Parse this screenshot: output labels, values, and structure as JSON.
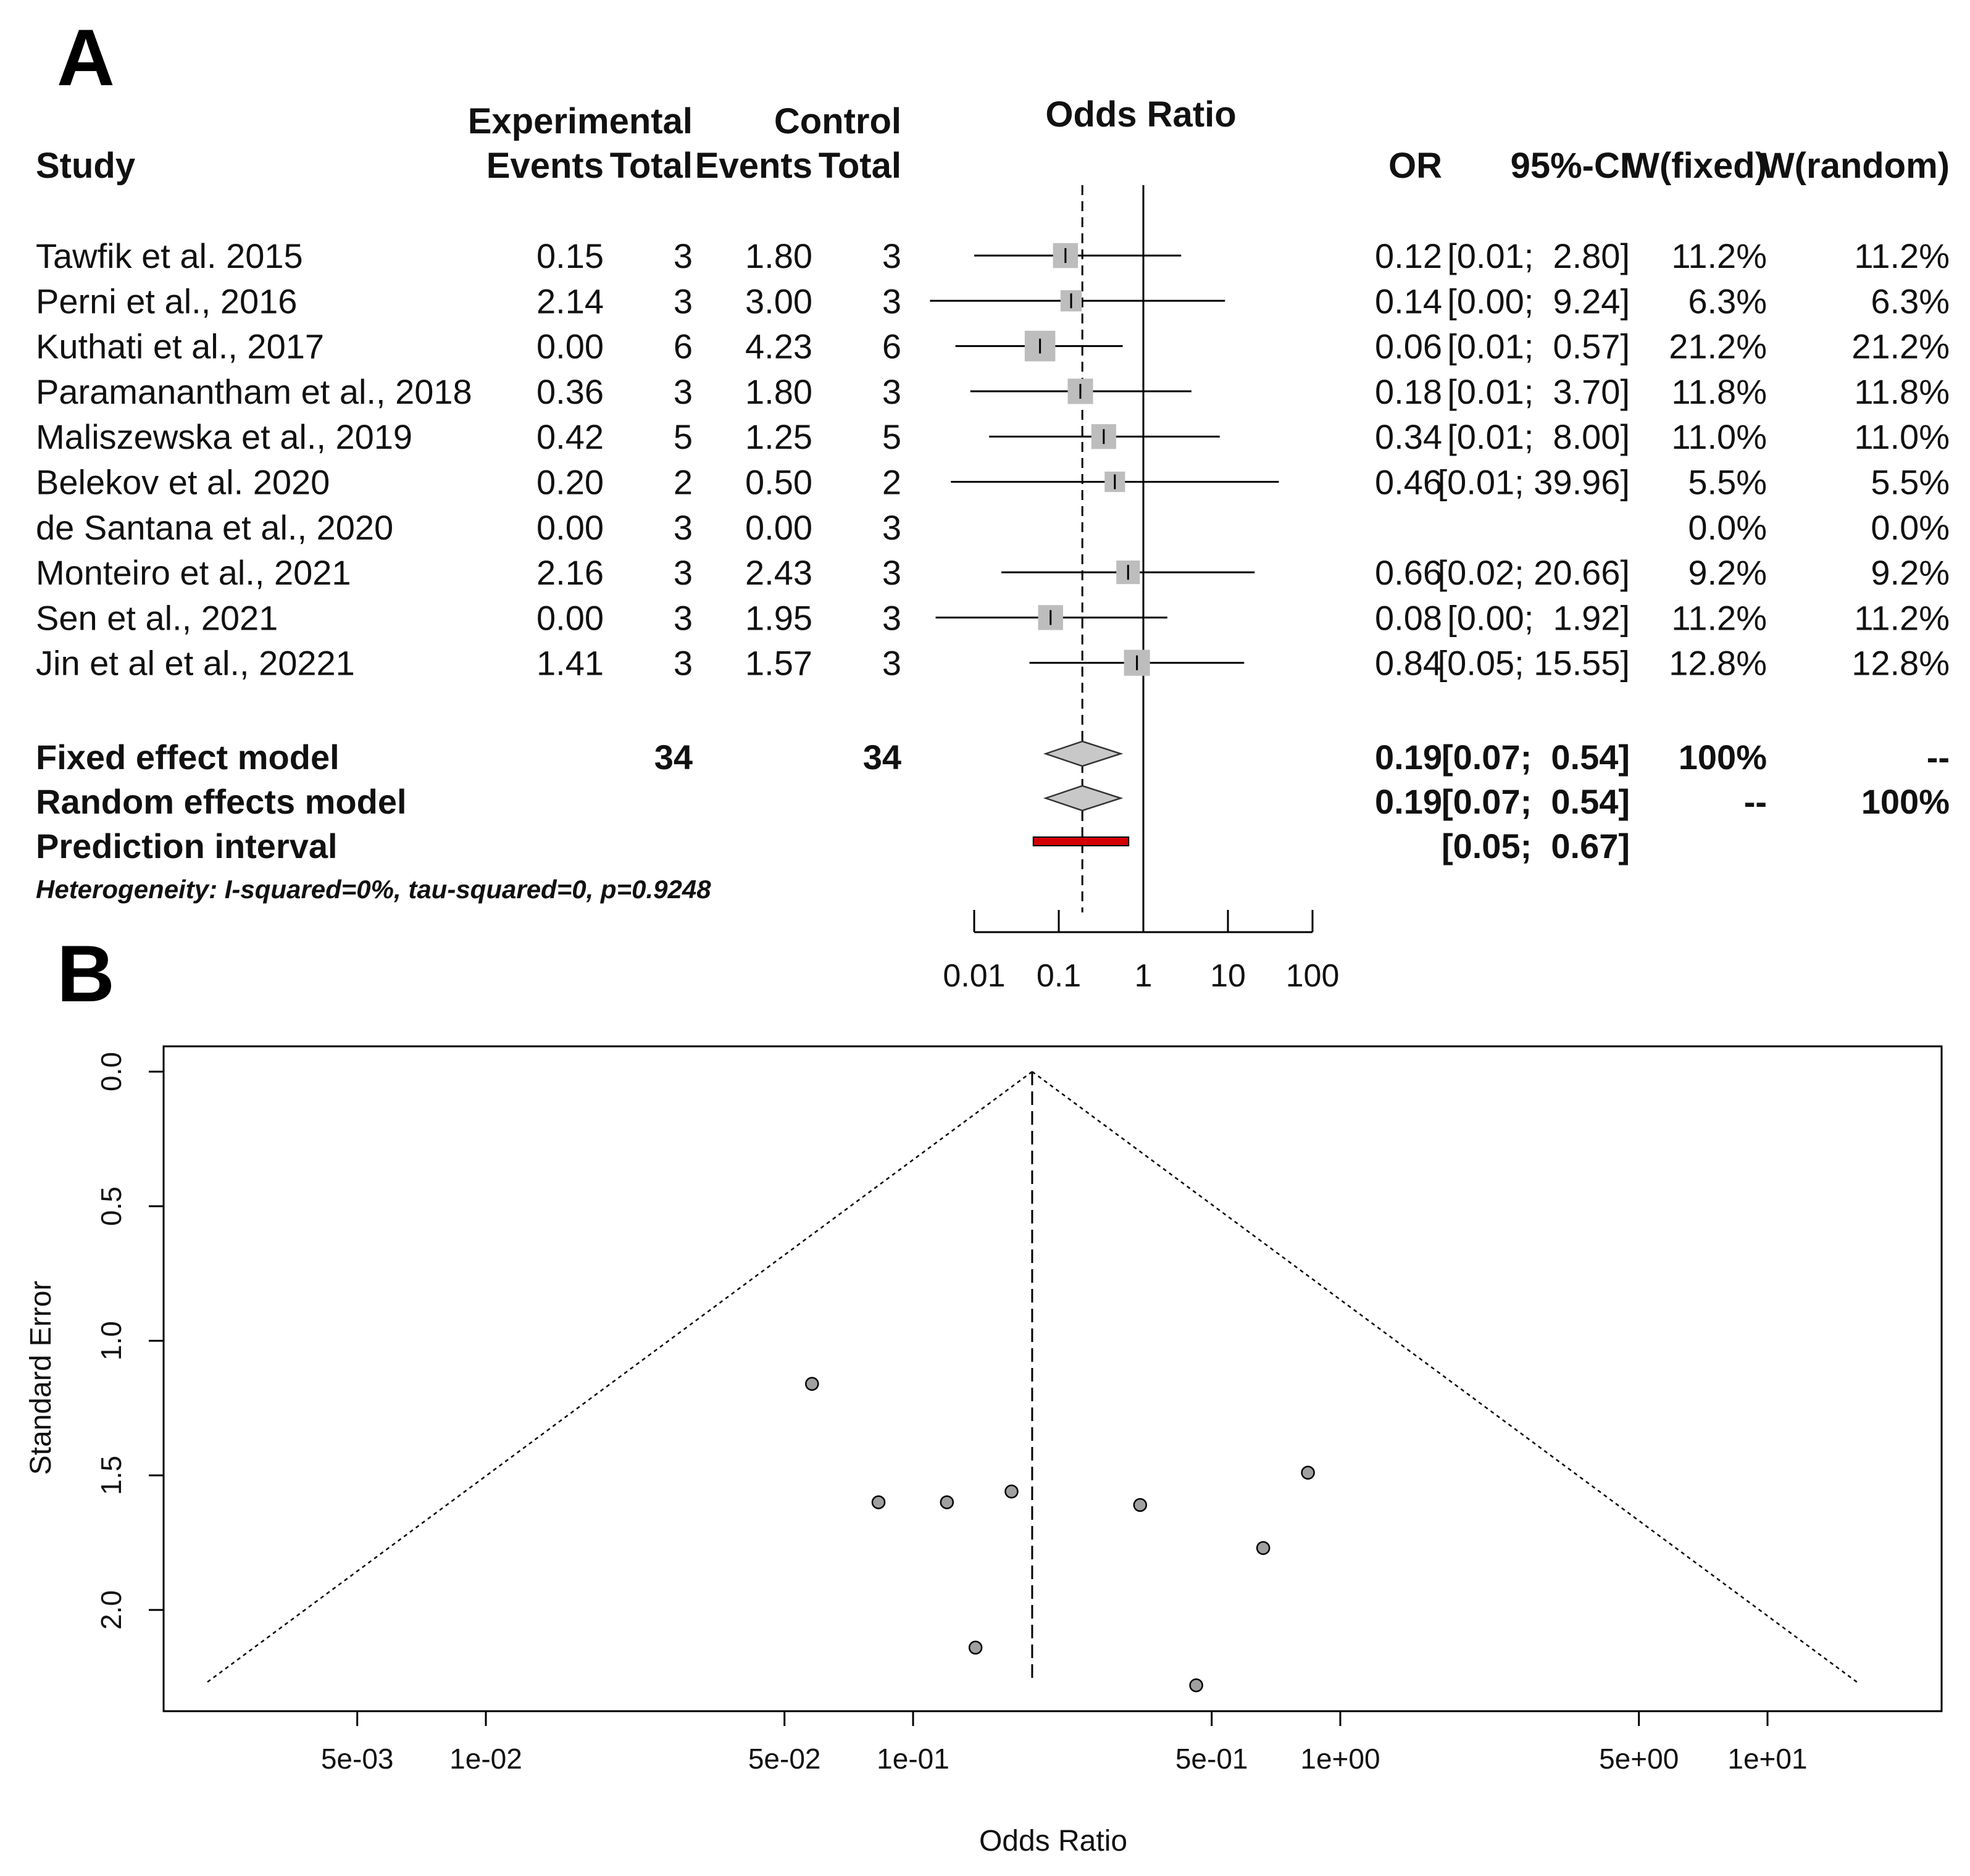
{
  "panels": {
    "a": "A",
    "b": "B"
  },
  "forest": {
    "headers": {
      "study": "Study",
      "experimental": "Experimental",
      "control": "Control",
      "events": "Events",
      "total": "Total",
      "odds_ratio": "Odds Ratio",
      "or": "OR",
      "ci": "95%-CI",
      "w_fixed": "W(fixed)",
      "w_random": "W(random)"
    },
    "rows": [
      {
        "study": "Tawfik et al. 2015",
        "e_events": "0.15",
        "e_total": "3",
        "c_events": "1.80",
        "c_total": "3",
        "or_text": "0.12",
        "ci_text": "[0.01;  2.80]",
        "wf": "11.2%",
        "wr": "11.2%"
      },
      {
        "study": "Perni et al., 2016",
        "e_events": "2.14",
        "e_total": "3",
        "c_events": "3.00",
        "c_total": "3",
        "or_text": "0.14",
        "ci_text": "[0.00;  9.24]",
        "wf": "6.3%",
        "wr": "6.3%"
      },
      {
        "study": "Kuthati et al., 2017",
        "e_events": "0.00",
        "e_total": "6",
        "c_events": "4.23",
        "c_total": "6",
        "or_text": "0.06",
        "ci_text": "[0.01;  0.57]",
        "wf": "21.2%",
        "wr": "21.2%"
      },
      {
        "study": "Paramanantham et al., 2018",
        "e_events": "0.36",
        "e_total": "3",
        "c_events": "1.80",
        "c_total": "3",
        "or_text": "0.18",
        "ci_text": "[0.01;  3.70]",
        "wf": "11.8%",
        "wr": "11.8%"
      },
      {
        "study": "Maliszewska et al., 2019",
        "e_events": "0.42",
        "e_total": "5",
        "c_events": "1.25",
        "c_total": "5",
        "or_text": "0.34",
        "ci_text": "[0.01;  8.00]",
        "wf": "11.0%",
        "wr": "11.0%"
      },
      {
        "study": "Belekov et al. 2020",
        "e_events": "0.20",
        "e_total": "2",
        "c_events": "0.50",
        "c_total": "2",
        "or_text": "0.46",
        "ci_text": "[0.01; 39.96]",
        "wf": "5.5%",
        "wr": "5.5%"
      },
      {
        "study": "de Santana et al., 2020",
        "e_events": "0.00",
        "e_total": "3",
        "c_events": "0.00",
        "c_total": "3",
        "or_text": "",
        "ci_text": "",
        "wf": "0.0%",
        "wr": "0.0%"
      },
      {
        "study": "Monteiro et al., 2021",
        "e_events": "2.16",
        "e_total": "3",
        "c_events": "2.43",
        "c_total": "3",
        "or_text": "0.66",
        "ci_text": "[0.02; 20.66]",
        "wf": "9.2%",
        "wr": "9.2%"
      },
      {
        "study": "Sen et al., 2021",
        "e_events": "0.00",
        "e_total": "3",
        "c_events": "1.95",
        "c_total": "3",
        "or_text": "0.08",
        "ci_text": "[0.00;  1.92]",
        "wf": "11.2%",
        "wr": "11.2%"
      },
      {
        "study": "Jin et al et al., 20221",
        "e_events": "1.41",
        "e_total": "3",
        "c_events": "1.57",
        "c_total": "3",
        "or_text": "0.84",
        "ci_text": "[0.05; 15.55]",
        "wf": "12.8%",
        "wr": "12.8%"
      }
    ],
    "fixed": {
      "label": "Fixed effect model",
      "e_total": "34",
      "c_total": "34",
      "or_text": "0.19",
      "ci_text": "[0.07;  0.54]",
      "wf": "100%",
      "wr": "--"
    },
    "random": {
      "label": "Random effects model",
      "or_text": "0.19",
      "ci_text": "[0.07;  0.54]",
      "wf": "--",
      "wr": "100%"
    },
    "prediction": {
      "label": "Prediction interval",
      "ci_text": "[0.05;  0.67]"
    },
    "heterogeneity": "Heterogeneity: I-squared=0%, tau-squared=0, p=0.9248"
  },
  "chart_data": [
    {
      "type": "forest",
      "title": "Odds Ratio",
      "scale": "log",
      "xlim": [
        0.01,
        100
      ],
      "ticks": [
        0.01,
        0.1,
        1,
        10,
        100
      ],
      "tick_labels": [
        "0.01",
        "0.1",
        "1",
        "10",
        "100"
      ],
      "reference_line": 1,
      "summary_line": 0.19,
      "studies": [
        {
          "name": "Tawfik et al. 2015",
          "or": 0.12,
          "lo": 0.01,
          "hi": 2.8,
          "weight": 11.2
        },
        {
          "name": "Perni et al., 2016",
          "or": 0.14,
          "lo": 0.003,
          "hi": 9.24,
          "weight": 6.3
        },
        {
          "name": "Kuthati et al., 2017",
          "or": 0.06,
          "lo": 0.006,
          "hi": 0.57,
          "weight": 21.2
        },
        {
          "name": "Paramanantham et al., 2018",
          "or": 0.18,
          "lo": 0.009,
          "hi": 3.7,
          "weight": 11.8
        },
        {
          "name": "Maliszewska et al., 2019",
          "or": 0.34,
          "lo": 0.015,
          "hi": 8.0,
          "weight": 11.0
        },
        {
          "name": "Belekov et al. 2020",
          "or": 0.46,
          "lo": 0.0053,
          "hi": 39.96,
          "weight": 5.5
        },
        {
          "name": "de Santana et al., 2020",
          "or": null,
          "lo": null,
          "hi": null,
          "weight": 0.0
        },
        {
          "name": "Monteiro et al., 2021",
          "or": 0.66,
          "lo": 0.021,
          "hi": 20.66,
          "weight": 9.2
        },
        {
          "name": "Sen et al., 2021",
          "or": 0.08,
          "lo": 0.0035,
          "hi": 1.92,
          "weight": 11.2
        },
        {
          "name": "Jin et al et al., 20221",
          "or": 0.84,
          "lo": 0.045,
          "hi": 15.55,
          "weight": 12.8
        }
      ],
      "fixed": {
        "or": 0.19,
        "lo": 0.07,
        "hi": 0.54
      },
      "random": {
        "or": 0.19,
        "lo": 0.07,
        "hi": 0.54
      },
      "prediction": {
        "lo": 0.05,
        "hi": 0.67
      }
    },
    {
      "type": "scatter",
      "title": "",
      "xlabel": "Odds Ratio",
      "ylabel": "Standard Error",
      "xscale": "log",
      "xlim": [
        0.002,
        20
      ],
      "ylim": [
        2.4,
        0
      ],
      "x_ticks": [
        0.005,
        0.01,
        0.05,
        0.1,
        0.5,
        1,
        5,
        10
      ],
      "x_tick_labels": [
        "5e-03",
        "1e-02",
        "5e-02",
        "1e-01",
        "5e-01",
        "1e+00",
        "5e+00",
        "1e+01"
      ],
      "y_ticks": [
        0,
        0.5,
        1,
        1.5,
        2
      ],
      "y_tick_labels": [
        "0.0",
        "0.5",
        "1.0",
        "1.5",
        "2.0"
      ],
      "center": 0.19,
      "funnel_bottom_se": 2.27,
      "points": [
        {
          "or": 0.058,
          "se": 1.16
        },
        {
          "or": 0.083,
          "se": 1.6
        },
        {
          "or": 0.12,
          "se": 1.6
        },
        {
          "or": 0.17,
          "se": 1.56
        },
        {
          "or": 0.34,
          "se": 1.61
        },
        {
          "or": 0.66,
          "se": 1.77
        },
        {
          "or": 0.84,
          "se": 1.49
        },
        {
          "or": 0.14,
          "se": 2.14
        },
        {
          "or": 0.46,
          "se": 2.28
        }
      ]
    }
  ]
}
